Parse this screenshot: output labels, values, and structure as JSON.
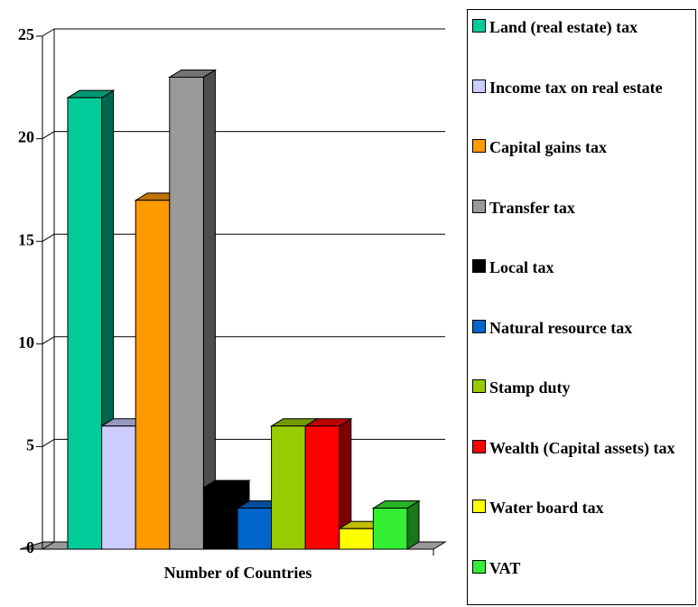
{
  "chart_data": {
    "type": "bar3d",
    "categories": [
      "Number of Countries"
    ],
    "series": [
      {
        "name": "Land (real estate) tax",
        "color": "#00cc99",
        "values": [
          22
        ]
      },
      {
        "name": "Income tax on real estate",
        "color": "#ccccff",
        "values": [
          6
        ]
      },
      {
        "name": "Capital gains tax",
        "color": "#ff9900",
        "values": [
          17
        ]
      },
      {
        "name": "Transfer tax",
        "color": "#999999",
        "values": [
          23
        ]
      },
      {
        "name": "Local tax",
        "color": "#000000",
        "values": [
          3
        ]
      },
      {
        "name": "Natural resource tax",
        "color": "#0066cc",
        "values": [
          2
        ]
      },
      {
        "name": "Stamp duty",
        "color": "#99cc00",
        "values": [
          6
        ]
      },
      {
        "name": "Wealth (Capital assets) tax",
        "color": "#ff0000",
        "values": [
          6
        ]
      },
      {
        "name": "Water board tax",
        "color": "#ffff00",
        "values": [
          1
        ]
      },
      {
        "name": "VAT",
        "color": "#33ee33",
        "values": [
          2
        ]
      }
    ],
    "ylim": [
      0,
      25
    ],
    "yticks": [
      0,
      5,
      10,
      15,
      20,
      25
    ],
    "grid": true
  }
}
